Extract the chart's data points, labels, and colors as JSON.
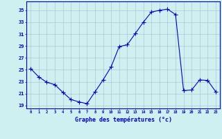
{
  "hours": [
    0,
    1,
    2,
    3,
    4,
    5,
    6,
    7,
    8,
    9,
    10,
    11,
    12,
    13,
    14,
    15,
    16,
    17,
    18,
    19,
    20,
    21,
    22,
    23
  ],
  "temps": [
    25.2,
    23.8,
    22.9,
    22.5,
    21.2,
    20.0,
    19.6,
    19.3,
    21.3,
    23.3,
    25.5,
    28.9,
    29.2,
    31.1,
    33.0,
    34.7,
    35.0,
    35.2,
    34.3,
    21.5,
    21.6,
    23.3,
    23.2,
    21.3
  ],
  "line_color": "#0000cc",
  "marker": "+",
  "marker_size": 4,
  "bg_color": "#cff0f0",
  "grid_color": "#aabbcc",
  "xlabel": "Graphe des températures (°c)",
  "ylabel_ticks": [
    19,
    21,
    23,
    25,
    27,
    29,
    31,
    33,
    35
  ],
  "ylim": [
    18.5,
    36.5
  ],
  "xlim": [
    -0.5,
    23.5
  ],
  "tick_color": "#0000cc",
  "spine_color": "#0000cc"
}
